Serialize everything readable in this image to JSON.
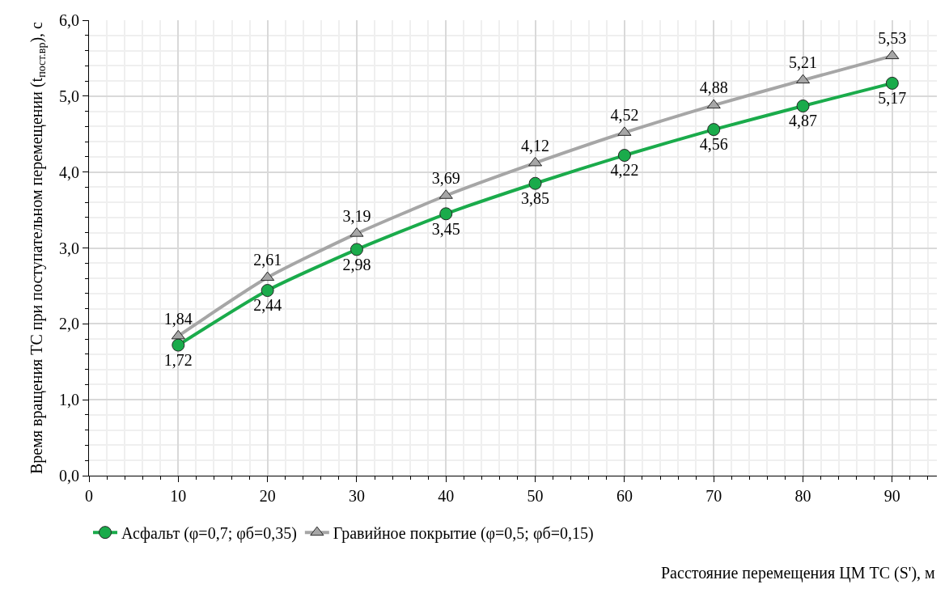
{
  "chart_data": {
    "type": "line",
    "xlabel": "Расстояние перемещения ЦМ ТС (S'), м",
    "ylabel": "Время вращения ТС при поступательном перемещении (t$_{пост.вр}$), с",
    "x": [
      10,
      20,
      30,
      40,
      50,
      60,
      70,
      80,
      90
    ],
    "series": [
      {
        "name": "Асфальт (φ=0,7; φб=0,35)",
        "color": "#1aab4b",
        "marker": "circle",
        "values": [
          1.72,
          2.44,
          2.98,
          3.45,
          3.85,
          4.22,
          4.56,
          4.87,
          5.17
        ],
        "value_labels": [
          "1,72",
          "2,44",
          "2,98",
          "3,45",
          "3,85",
          "4,22",
          "4,56",
          "4,87",
          "5,17"
        ]
      },
      {
        "name": "Гравийное покрытие (φ=0,5; φб=0,15)",
        "color": "#a6a6a6",
        "marker": "triangle",
        "values": [
          1.84,
          2.61,
          3.19,
          3.69,
          4.12,
          4.52,
          4.88,
          5.21,
          5.53
        ],
        "value_labels": [
          "1,84",
          "2,61",
          "3,19",
          "3,69",
          "4,12",
          "4,52",
          "4,88",
          "5,21",
          "5,53"
        ]
      }
    ],
    "xlim": [
      0,
      95
    ],
    "xticks": [
      0,
      10,
      20,
      30,
      40,
      50,
      60,
      70,
      80,
      90
    ],
    "ylim": [
      0,
      6
    ],
    "yticks": [
      {
        "value": 0,
        "label": "0,0"
      },
      {
        "value": 1,
        "label": "1,0"
      },
      {
        "value": 2,
        "label": "2,0"
      },
      {
        "value": 3,
        "label": "3,0"
      },
      {
        "value": 4,
        "label": "4,0"
      },
      {
        "value": 5,
        "label": "5,0"
      },
      {
        "value": 6,
        "label": "6,0"
      }
    ],
    "grid": true,
    "legend": "bottom",
    "line_style": "solid"
  }
}
